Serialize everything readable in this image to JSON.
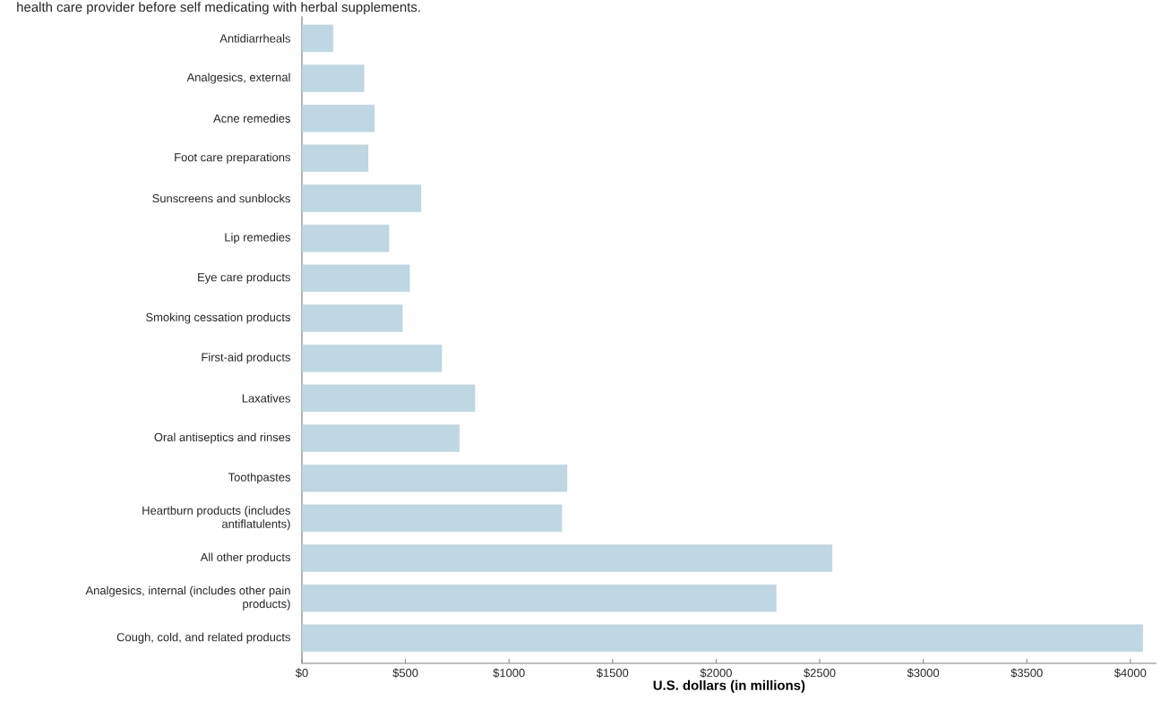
{
  "chart_data": {
    "type": "bar",
    "orientation": "horizontal",
    "categories": [
      "Antidiarrheals",
      "Analgesics, external",
      "Acne remedies",
      "Foot care preparations",
      "Sunscreens and sunblocks",
      "Lip remedies",
      "Eye care products",
      "Smoking cessation products",
      "First-aid products",
      "Laxatives",
      "Oral antiseptics and rinses",
      "Toothpastes",
      "Heartburn products (includes antiflatulents)",
      "All other products",
      "Analgesics, internal (includes other pain products)",
      "Cough, cold, and related products"
    ],
    "values": [
      150,
      300,
      350,
      320,
      575,
      420,
      520,
      485,
      675,
      835,
      760,
      1280,
      1255,
      2560,
      2290,
      4060
    ],
    "color": "#bfd7e2",
    "xlabel": "U.S. dollars (in millions)",
    "xlim": [
      0,
      4125
    ],
    "xticks": [
      {
        "value": 0,
        "label": "$0"
      },
      {
        "value": 500,
        "label": "$500"
      },
      {
        "value": 1000,
        "label": "$1000"
      },
      {
        "value": 1500,
        "label": "$1500"
      },
      {
        "value": 2000,
        "label": "$2000"
      },
      {
        "value": 2500,
        "label": "$2500"
      },
      {
        "value": 3000,
        "label": "$3000"
      },
      {
        "value": 3500,
        "label": "$3500"
      },
      {
        "value": 4000,
        "label": "$4000"
      }
    ],
    "annotations": [
      "health care provider before self medicating with herbal supplements."
    ]
  }
}
